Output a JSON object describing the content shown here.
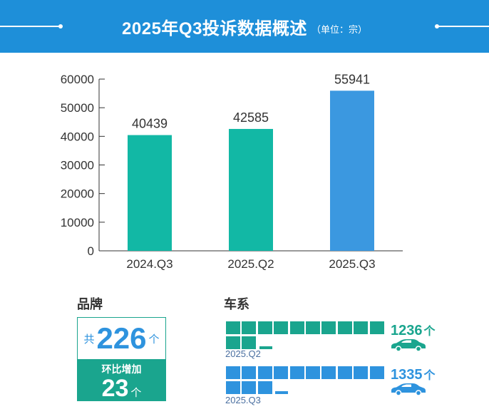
{
  "header": {
    "title": "2025年Q3投诉数据概述",
    "unit": "（单位：宗）"
  },
  "colors": {
    "banner": "#1e8fd9",
    "teal": "#1aa58e",
    "bar_teal": "#12b8a5",
    "bar_blue": "#3b98e0",
    "blue": "#2e93de"
  },
  "chart_data": {
    "type": "bar",
    "title": "2025年Q3投诉数据概述",
    "unit": "（单位：宗）",
    "categories": [
      "2024.Q3",
      "2025.Q2",
      "2025.Q3"
    ],
    "values": [
      40439,
      42585,
      55941
    ],
    "ylim": [
      0,
      60000
    ],
    "yticks": [
      0,
      10000,
      20000,
      30000,
      40000,
      50000,
      60000
    ],
    "grid": false,
    "legend": "none"
  },
  "brand": {
    "title": "品牌",
    "prefix": "共",
    "total": "226",
    "total_unit": "个",
    "change_label": "环比增加",
    "change_value": "23",
    "change_unit": "个"
  },
  "series": {
    "title": "车系",
    "q2": {
      "count": "1236",
      "unit": "个",
      "period": "2025.Q2",
      "icon": "car-icon"
    },
    "q3": {
      "count": "1335",
      "unit": "个",
      "period": "2025.Q3",
      "icon": "car-icon"
    }
  }
}
